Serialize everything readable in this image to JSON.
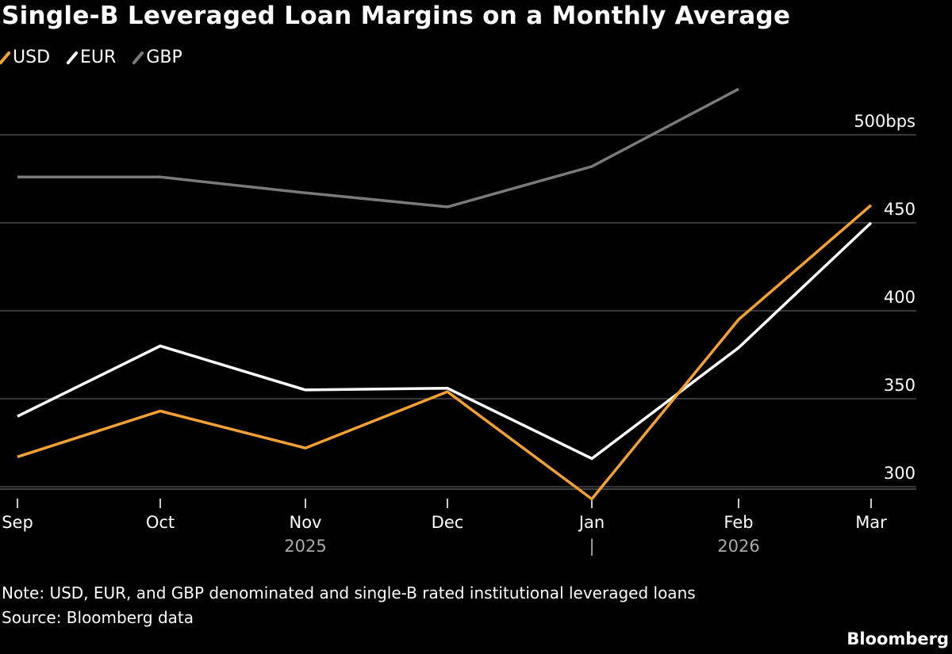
{
  "chart_data": {
    "type": "line",
    "title": "Single-B Leveraged Loan Margins on a Monthly Average",
    "categories": [
      "Sep",
      "Oct",
      "Nov",
      "Dec",
      "Jan",
      "Feb",
      "Mar"
    ],
    "year_labels": [
      {
        "at": "Nov",
        "text": "2025"
      },
      {
        "at": "Jan",
        "text": "|"
      },
      {
        "at": "Feb",
        "text": "2026"
      }
    ],
    "series": [
      {
        "name": "USD",
        "color": "#f5a033",
        "values": [
          317,
          343,
          322,
          354,
          293,
          395,
          460
        ]
      },
      {
        "name": "EUR",
        "color": "#ffffff",
        "values": [
          340,
          380,
          355,
          356,
          316,
          379,
          450
        ]
      },
      {
        "name": "GBP",
        "color": "#7a7a7a",
        "values": [
          476,
          476,
          467,
          459,
          482,
          526,
          null
        ]
      }
    ],
    "yticks": [
      300,
      350,
      400,
      450,
      500
    ],
    "ytick_labels": [
      "300",
      "350",
      "400",
      "450",
      "500bps"
    ],
    "ylim": [
      295,
      530
    ],
    "grid": true,
    "legend": "top-left",
    "axis_position": "right"
  },
  "note": "Note: USD, EUR, and GBP denominated and single-B rated institutional leveraged loans",
  "source": "Source: Bloomberg data",
  "brand": "Bloomberg"
}
